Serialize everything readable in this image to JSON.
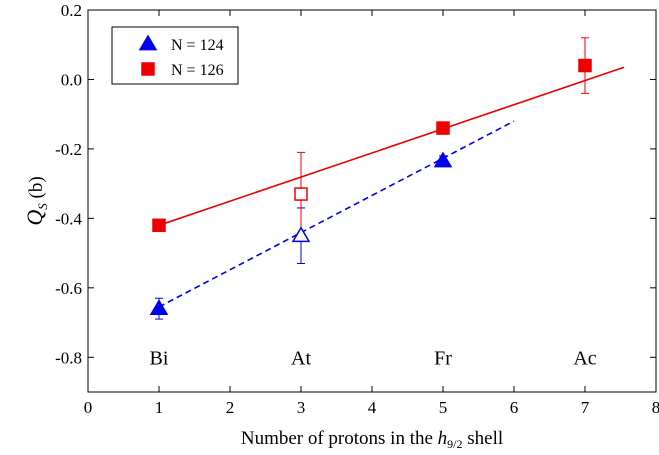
{
  "chart_data": {
    "type": "scatter",
    "xlabel_prefix": "Number of protons in the ",
    "xlabel_italic": "h",
    "xlabel_sub": "9/2",
    "xlabel_suffix": " shell",
    "ylabel_main": "Q",
    "ylabel_sub": "S",
    "ylabel_unit": " (b)",
    "xlim": [
      0,
      8
    ],
    "ylim": [
      -0.9,
      0.2
    ],
    "x_ticks": [
      0,
      1,
      2,
      3,
      4,
      5,
      6,
      7,
      8
    ],
    "x_tick_labels": [
      "0",
      "1",
      "2",
      "3",
      "4",
      "5",
      "6",
      "7",
      "8"
    ],
    "y_ticks": [
      -0.8,
      -0.6,
      -0.4,
      -0.2,
      0.0,
      0.2
    ],
    "y_tick_labels": [
      "-0.8",
      "-0.6",
      "-0.4",
      "-0.2",
      "0.0",
      "0.2"
    ],
    "grid": false,
    "legend_position": "top-left",
    "series": [
      {
        "name": "N = 124",
        "marker": "triangle",
        "color": "#0000ee",
        "points": [
          {
            "x": 1,
            "y": -0.66,
            "err": 0.03,
            "filled": true
          },
          {
            "x": 3,
            "y": -0.45,
            "err": 0.08,
            "filled": false
          },
          {
            "x": 5,
            "y": -0.235,
            "err": 0.015,
            "filled": true
          }
        ],
        "fit": {
          "x": [
            1,
            6
          ],
          "y": [
            -0.655,
            -0.12
          ],
          "style": "dashed"
        }
      },
      {
        "name": "N = 126",
        "marker": "square",
        "color": "#ee0000",
        "points": [
          {
            "x": 1,
            "y": -0.42,
            "err": 0.0,
            "filled": true
          },
          {
            "x": 3,
            "y": -0.33,
            "err": 0.12,
            "filled": false
          },
          {
            "x": 5,
            "y": -0.14,
            "err": 0.015,
            "filled": true
          },
          {
            "x": 7,
            "y": 0.04,
            "err": 0.08,
            "filled": true
          }
        ],
        "fit": {
          "x": [
            1,
            7.55
          ],
          "y": [
            -0.42,
            0.035
          ],
          "style": "solid"
        }
      }
    ],
    "annotations": [
      {
        "text": "Bi",
        "x": 1,
        "y": -0.8
      },
      {
        "text": "At",
        "x": 3,
        "y": -0.8
      },
      {
        "text": "Fr",
        "x": 5,
        "y": -0.8
      },
      {
        "text": "Ac",
        "x": 7,
        "y": -0.8
      }
    ]
  }
}
